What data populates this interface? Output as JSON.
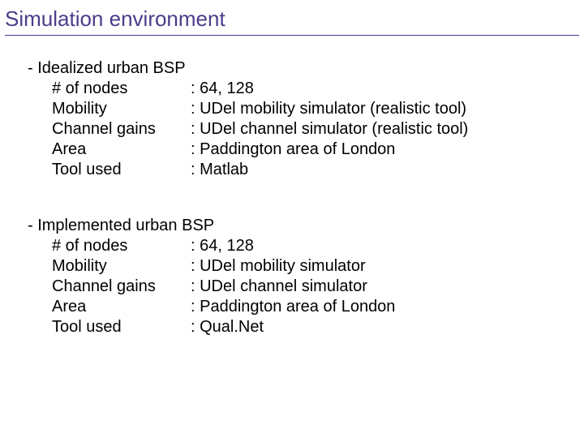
{
  "title": "Simulation environment",
  "colors": {
    "title": "#4c3b8a",
    "underline": "#4c3b8a",
    "body": "#000000",
    "background": "#ffffff"
  },
  "typography": {
    "title_fontsize": 26,
    "body_fontsize": 20,
    "family": "Arial"
  },
  "sections": [
    {
      "header": "- Idealized urban BSP",
      "rows": [
        {
          "label": "# of nodes",
          "value": ": 64, 128"
        },
        {
          "label": "Mobility",
          "value": ": UDel mobility simulator (realistic tool)"
        },
        {
          "label": "Channel gains",
          "value": ": UDel channel simulator (realistic tool)"
        },
        {
          "label": "Area",
          "value": ": Paddington area of London"
        },
        {
          "label": "Tool used",
          "value": ": Matlab"
        }
      ]
    },
    {
      "header": "- Implemented urban BSP",
      "rows": [
        {
          "label": "# of nodes",
          "value": ": 64, 128"
        },
        {
          "label": "Mobility",
          "value": ": UDel mobility simulator"
        },
        {
          "label": "Channel gains",
          "value": ": UDel channel simulator"
        },
        {
          "label": "Area",
          "value": ": Paddington area of London"
        },
        {
          "label": "Tool used",
          "value": ": Qual.Net"
        }
      ]
    }
  ]
}
